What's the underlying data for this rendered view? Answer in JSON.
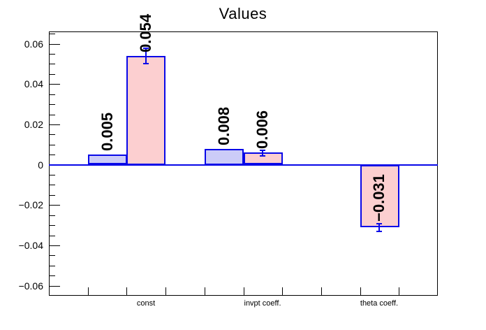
{
  "chart_data": {
    "type": "bar",
    "title": "Values",
    "xlabel": "",
    "ylabel": "",
    "grid": false,
    "legend": null,
    "ylim": [
      -0.065,
      0.0661
    ],
    "n_cells": 10,
    "yticks": [
      {
        "value": 0.06,
        "label": "0.06"
      },
      {
        "value": 0.04,
        "label": "0.04"
      },
      {
        "value": 0.02,
        "label": "0.02"
      },
      {
        "value": 0.0,
        "label": "0"
      },
      {
        "value": -0.02,
        "label": "−0.02"
      },
      {
        "value": -0.04,
        "label": "−0.04"
      },
      {
        "value": -0.06,
        "label": "−0.06"
      }
    ],
    "minor_tick_step": 0.005,
    "categories": [
      {
        "label": "const",
        "cell": 2
      },
      {
        "label": "invpt coeff.",
        "cell": 5
      },
      {
        "label": "theta coeff.",
        "cell": 8
      }
    ],
    "series": [
      {
        "name": "blue-bars",
        "fill": "#ccccf8",
        "stroke": "#0808e8"
      },
      {
        "name": "pink-bars",
        "fill": "#fccfd0",
        "stroke": "#0808e8"
      }
    ],
    "bars": [
      {
        "cell": 1,
        "series": 0,
        "value": 0.005,
        "label": "0.005"
      },
      {
        "cell": 2,
        "series": 1,
        "value": 0.054,
        "label": "0.054",
        "error": 0.004
      },
      {
        "cell": 4,
        "series": 0,
        "value": 0.008,
        "label": "0.008"
      },
      {
        "cell": 5,
        "series": 1,
        "value": 0.006,
        "label": "0.006",
        "error": 0.0015
      },
      {
        "cell": 8,
        "series": 1,
        "value": -0.031,
        "label": "−0.031",
        "error": 0.002
      }
    ],
    "zero_line_color": "#0808e8",
    "frame_color": "#000000",
    "background_color": "#ffffff"
  }
}
